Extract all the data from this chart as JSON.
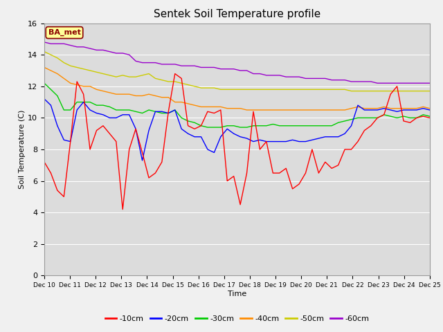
{
  "title": "Sentek Soil Temperature profile",
  "xlabel": "Time",
  "ylabel": "Soil Temperature (C)",
  "ylim": [
    0,
    16
  ],
  "yticks": [
    0,
    2,
    4,
    6,
    8,
    10,
    12,
    14,
    16
  ],
  "x_labels": [
    "Dec 10",
    "Dec 11",
    "Dec 12",
    "Dec 13",
    "Dec 14",
    "Dec 15",
    "Dec 16",
    "Dec 17",
    "Dec 18",
    "Dec 19",
    "Dec 20",
    "Dec 21",
    "Dec 22",
    "Dec 23",
    "Dec 24",
    "Dec 25"
  ],
  "annotation_text": "BA_met",
  "annotation_color": "#8B0000",
  "annotation_bg": "#FFFF99",
  "fig_bg_color": "#F0F0F0",
  "plot_bg_color": "#DCDCDC",
  "grid_color": "#FFFFFF",
  "colors": {
    "-10cm": "#FF0000",
    "-20cm": "#0000FF",
    "-30cm": "#00CC00",
    "-40cm": "#FF8C00",
    "-50cm": "#CCCC00",
    "-60cm": "#9900CC"
  },
  "series": {
    "-10cm": [
      7.2,
      6.5,
      5.4,
      5.0,
      8.5,
      12.3,
      11.5,
      8.0,
      9.2,
      9.5,
      9.0,
      8.5,
      4.2,
      8.0,
      9.3,
      7.8,
      6.2,
      6.5,
      7.2,
      10.4,
      12.8,
      12.5,
      9.5,
      9.3,
      9.5,
      10.4,
      10.3,
      10.5,
      6.0,
      6.3,
      4.5,
      6.5,
      10.4,
      8.0,
      8.5,
      6.5,
      6.5,
      6.8,
      5.5,
      5.8,
      6.5,
      8.0,
      6.5,
      7.2,
      6.8,
      7.0,
      8.0,
      8.0,
      8.5,
      9.2,
      9.5,
      10.0,
      10.2,
      11.5,
      12.0,
      9.8,
      9.7,
      10.0,
      10.1,
      10.0
    ],
    "-20cm": [
      11.2,
      10.8,
      9.5,
      8.6,
      8.5,
      10.5,
      11.0,
      10.5,
      10.3,
      10.2,
      10.0,
      10.0,
      10.2,
      10.2,
      9.3,
      7.3,
      9.2,
      10.4,
      10.4,
      10.3,
      10.5,
      9.3,
      9.0,
      8.8,
      8.8,
      8.0,
      7.8,
      8.8,
      9.3,
      9.0,
      8.8,
      8.7,
      8.5,
      8.6,
      8.5,
      8.5,
      8.5,
      8.5,
      8.6,
      8.5,
      8.5,
      8.6,
      8.7,
      8.8,
      8.8,
      8.8,
      9.0,
      9.5,
      10.8,
      10.5,
      10.5,
      10.5,
      10.6,
      10.5,
      10.4,
      10.5,
      10.5,
      10.5,
      10.6,
      10.5
    ],
    "-30cm": [
      12.2,
      11.8,
      11.4,
      10.5,
      10.5,
      11.0,
      11.0,
      11.0,
      10.8,
      10.8,
      10.7,
      10.5,
      10.5,
      10.5,
      10.4,
      10.3,
      10.5,
      10.4,
      10.3,
      10.3,
      10.5,
      10.0,
      9.8,
      9.7,
      9.5,
      9.4,
      9.4,
      9.4,
      9.5,
      9.5,
      9.4,
      9.4,
      9.5,
      9.5,
      9.5,
      9.6,
      9.5,
      9.5,
      9.5,
      9.5,
      9.5,
      9.5,
      9.5,
      9.5,
      9.5,
      9.7,
      9.8,
      9.9,
      10.0,
      10.0,
      10.0,
      10.0,
      10.2,
      10.1,
      10.0,
      10.1,
      10.0,
      10.0,
      10.2,
      10.1
    ],
    "-40cm": [
      13.2,
      13.0,
      12.8,
      12.5,
      12.2,
      12.1,
      12.0,
      12.0,
      11.8,
      11.7,
      11.6,
      11.5,
      11.5,
      11.5,
      11.4,
      11.4,
      11.5,
      11.4,
      11.3,
      11.3,
      11.0,
      11.0,
      10.9,
      10.8,
      10.7,
      10.7,
      10.7,
      10.7,
      10.6,
      10.6,
      10.6,
      10.5,
      10.5,
      10.5,
      10.5,
      10.5,
      10.5,
      10.5,
      10.5,
      10.5,
      10.5,
      10.5,
      10.5,
      10.5,
      10.5,
      10.5,
      10.5,
      10.6,
      10.7,
      10.6,
      10.6,
      10.6,
      10.7,
      10.6,
      10.6,
      10.6,
      10.6,
      10.6,
      10.7,
      10.6
    ],
    "-50cm": [
      14.2,
      14.0,
      13.8,
      13.5,
      13.3,
      13.2,
      13.1,
      13.0,
      12.9,
      12.8,
      12.7,
      12.6,
      12.7,
      12.6,
      12.6,
      12.7,
      12.8,
      12.5,
      12.4,
      12.3,
      12.3,
      12.2,
      12.1,
      12.0,
      11.9,
      11.9,
      11.9,
      11.8,
      11.8,
      11.8,
      11.8,
      11.8,
      11.8,
      11.8,
      11.8,
      11.8,
      11.8,
      11.8,
      11.8,
      11.8,
      11.8,
      11.8,
      11.8,
      11.8,
      11.8,
      11.8,
      11.8,
      11.7,
      11.7,
      11.7,
      11.7,
      11.7,
      11.7,
      11.7,
      11.7,
      11.7,
      11.7,
      11.7,
      11.7,
      11.7
    ],
    "-60cm": [
      14.8,
      14.7,
      14.7,
      14.7,
      14.6,
      14.5,
      14.5,
      14.4,
      14.3,
      14.3,
      14.2,
      14.1,
      14.1,
      14.0,
      13.6,
      13.5,
      13.5,
      13.5,
      13.4,
      13.4,
      13.4,
      13.3,
      13.3,
      13.3,
      13.2,
      13.2,
      13.2,
      13.1,
      13.1,
      13.1,
      13.0,
      13.0,
      12.8,
      12.8,
      12.7,
      12.7,
      12.7,
      12.6,
      12.6,
      12.6,
      12.5,
      12.5,
      12.5,
      12.5,
      12.4,
      12.4,
      12.4,
      12.3,
      12.3,
      12.3,
      12.3,
      12.2,
      12.2,
      12.2,
      12.2,
      12.2,
      12.2,
      12.2,
      12.2,
      12.2
    ]
  }
}
